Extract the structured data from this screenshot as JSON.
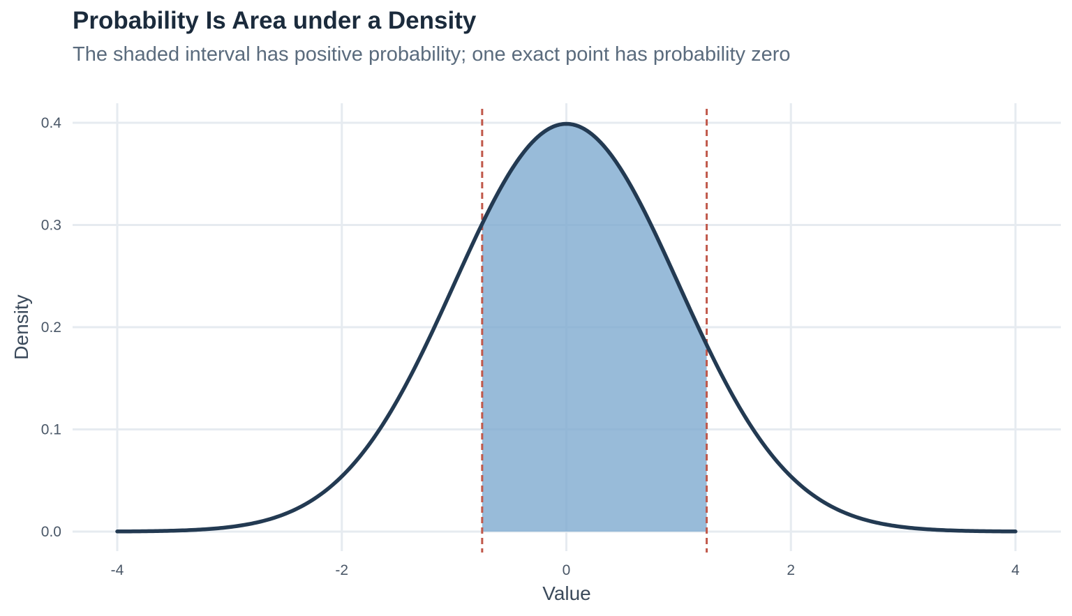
{
  "chart_data": {
    "type": "area",
    "title": "Probability Is Area under a Density",
    "subtitle": "The shaded interval has positive probability; one exact point has probability zero",
    "xlabel": "Value",
    "ylabel": "Density",
    "xlim": [
      -4,
      4
    ],
    "ylim": [
      0,
      0.4
    ],
    "x_ticks": [
      -4,
      -2,
      0,
      2,
      4
    ],
    "x_tick_labels": [
      "-4",
      "-2",
      "0",
      "2",
      "4"
    ],
    "y_ticks": [
      0.0,
      0.1,
      0.2,
      0.3,
      0.4
    ],
    "y_tick_labels": [
      "0.0",
      "0.1",
      "0.2",
      "0.3",
      "0.4"
    ],
    "grid": true,
    "series": [
      {
        "distribution": "normal",
        "mean": 0,
        "sd": 1,
        "x_range": [
          -4,
          4
        ]
      }
    ],
    "shaded_interval": [
      -0.75,
      1.25
    ],
    "reference_lines_x": [
      -0.75,
      1.25
    ],
    "colors": {
      "curve": "#233a52",
      "fill": "#7eaad0",
      "reference_line": "#c0584a",
      "grid": "#e6ebf0"
    }
  }
}
